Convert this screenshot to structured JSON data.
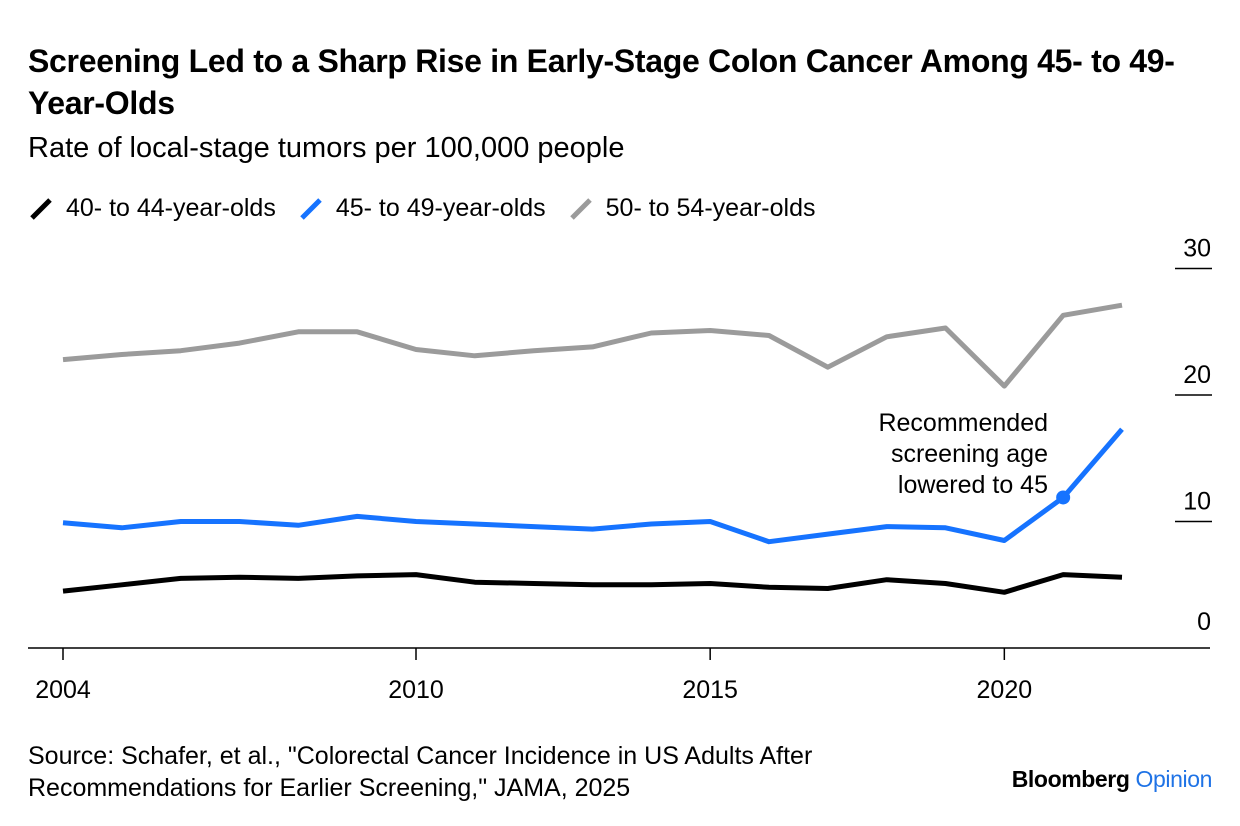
{
  "colors": {
    "black": "#000000",
    "blue": "#1673ff",
    "gray": "#9b9b9b"
  },
  "header": {
    "title": "Screening Led to a Sharp Rise in Early-Stage Colon Cancer Among 45- to 49-Year-Olds",
    "subtitle": "Rate of local-stage tumors per 100,000 people"
  },
  "legend": [
    {
      "label": "40- to 44-year-olds",
      "color": "#000000"
    },
    {
      "label": "45- to 49-year-olds",
      "color": "#1673ff"
    },
    {
      "label": "50- to 54-year-olds",
      "color": "#9b9b9b"
    }
  ],
  "footer": {
    "source": "Source: Schafer, et al., \"Colorectal Cancer Incidence in US Adults After Recommendations for Earlier Screening,\" JAMA, 2025",
    "logo_brand": "Bloomberg",
    "logo_opinion": "Opinion"
  },
  "chart_data": {
    "type": "line",
    "x": [
      2004,
      2005,
      2006,
      2007,
      2008,
      2009,
      2010,
      2011,
      2012,
      2013,
      2014,
      2015,
      2016,
      2017,
      2018,
      2019,
      2020,
      2021,
      2022
    ],
    "series": [
      {
        "name": "40- to 44-year-olds",
        "color": "#000000",
        "values": [
          4.5,
          5.0,
          5.5,
          5.6,
          5.5,
          5.7,
          5.8,
          5.2,
          5.1,
          5.0,
          5.0,
          5.1,
          4.8,
          4.7,
          5.4,
          5.1,
          4.4,
          5.8,
          5.6
        ]
      },
      {
        "name": "45- to 49-year-olds",
        "color": "#1673ff",
        "values": [
          9.9,
          9.5,
          10.0,
          10.0,
          9.7,
          10.4,
          10.0,
          9.8,
          9.6,
          9.4,
          9.8,
          10.0,
          8.4,
          9.0,
          9.6,
          9.5,
          8.5,
          11.9,
          17.3
        ]
      },
      {
        "name": "50- to 54-year-olds",
        "color": "#9b9b9b",
        "values": [
          22.8,
          23.2,
          23.5,
          24.1,
          25.0,
          25.0,
          23.6,
          23.1,
          23.5,
          23.8,
          24.9,
          25.1,
          24.7,
          22.2,
          24.6,
          25.3,
          20.7,
          26.3,
          27.1
        ]
      }
    ],
    "xticks": [
      "2004",
      "2010",
      "2015",
      "2020"
    ],
    "yticks": [
      "0",
      "10",
      "20",
      "30"
    ],
    "ylim": [
      0,
      32
    ],
    "annotation": {
      "text_lines": [
        "Recommended",
        "screening age",
        "lowered to 45"
      ],
      "x": 2021,
      "y": 11.9,
      "series": "45- to 49-year-olds"
    }
  }
}
